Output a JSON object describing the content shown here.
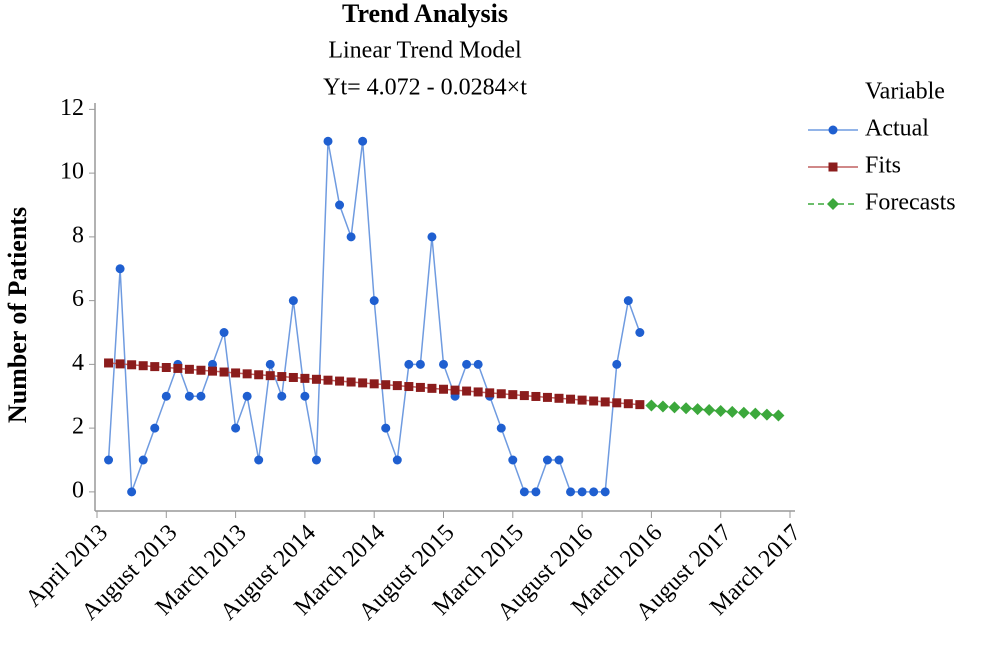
{
  "chart_data": {
    "type": "line",
    "title": "Trend Analysis",
    "subtitle": "Linear Trend Model",
    "annotation": "Yt= 4.072 -  0.0284×t",
    "y_label": "Number of Patients",
    "legend_title": "Variable",
    "legend": "right",
    "x": [
      1,
      2,
      3,
      4,
      5,
      6,
      7,
      8,
      9,
      10,
      11,
      12,
      13,
      14,
      15,
      16,
      17,
      18,
      19,
      20,
      21,
      22,
      23,
      24,
      25,
      26,
      27,
      28,
      29,
      30,
      31,
      32,
      33,
      34,
      35,
      36,
      37,
      38,
      39,
      40,
      41,
      42,
      43,
      44,
      45,
      46,
      47,
      48,
      49,
      50,
      51,
      52,
      53,
      54,
      55,
      56,
      57,
      58,
      59
    ],
    "xlim": [
      0,
      60
    ],
    "xticks": [
      {
        "value": 0,
        "label": "April 2013"
      },
      {
        "value": 6,
        "label": "August 2013"
      },
      {
        "value": 12,
        "label": "March 2013"
      },
      {
        "value": 18,
        "label": "August 2014"
      },
      {
        "value": 24,
        "label": "March 2014"
      },
      {
        "value": 30,
        "label": "August 2015"
      },
      {
        "value": 36,
        "label": "March 2015"
      },
      {
        "value": 42,
        "label": "August 2016"
      },
      {
        "value": 48,
        "label": "March 2016"
      },
      {
        "value": 54,
        "label": "August 2017"
      },
      {
        "value": 60,
        "label": "March 2017"
      }
    ],
    "ylim": [
      -0.6,
      12.2
    ],
    "yticks": [
      0,
      2,
      4,
      6,
      8,
      10,
      12
    ],
    "series": [
      {
        "name": "Actual",
        "color": "#1f5fd0",
        "marker": "circle",
        "dashed": false,
        "values": [
          1,
          7,
          0,
          1,
          2,
          3,
          4,
          3,
          3,
          4,
          5,
          2,
          3,
          1,
          4,
          3,
          6,
          3,
          1,
          11,
          9,
          8,
          11,
          6,
          2,
          1,
          4,
          4,
          8,
          4,
          3,
          4,
          4,
          3,
          2,
          1,
          0,
          0,
          1,
          1,
          0,
          0,
          0,
          0,
          4,
          6,
          5,
          null,
          null,
          null,
          null,
          null,
          null,
          null,
          null,
          null,
          null,
          null,
          null
        ]
      },
      {
        "name": "Fits",
        "color": "#8b1c1c",
        "marker": "square",
        "dashed": false,
        "values": [
          4.044,
          4.015,
          3.987,
          3.958,
          3.93,
          3.902,
          3.873,
          3.845,
          3.816,
          3.788,
          3.76,
          3.731,
          3.703,
          3.674,
          3.646,
          3.618,
          3.589,
          3.561,
          3.532,
          3.504,
          3.476,
          3.447,
          3.419,
          3.39,
          3.362,
          3.334,
          3.305,
          3.277,
          3.248,
          3.22,
          3.192,
          3.163,
          3.135,
          3.106,
          3.078,
          3.05,
          3.021,
          2.993,
          2.964,
          2.936,
          2.908,
          2.879,
          2.851,
          2.822,
          2.794,
          2.766,
          2.737,
          null,
          null,
          null,
          null,
          null,
          null,
          null,
          null,
          null,
          null,
          null,
          null
        ]
      },
      {
        "name": "Forecasts",
        "color": "#3ca83c",
        "marker": "diamond",
        "dashed": true,
        "values": [
          null,
          null,
          null,
          null,
          null,
          null,
          null,
          null,
          null,
          null,
          null,
          null,
          null,
          null,
          null,
          null,
          null,
          null,
          null,
          null,
          null,
          null,
          null,
          null,
          null,
          null,
          null,
          null,
          null,
          null,
          null,
          null,
          null,
          null,
          null,
          null,
          null,
          null,
          null,
          null,
          null,
          null,
          null,
          null,
          null,
          null,
          null,
          2.709,
          2.68,
          2.652,
          2.623,
          2.595,
          2.567,
          2.538,
          2.51,
          2.481,
          2.453,
          2.425,
          2.396
        ]
      }
    ]
  }
}
